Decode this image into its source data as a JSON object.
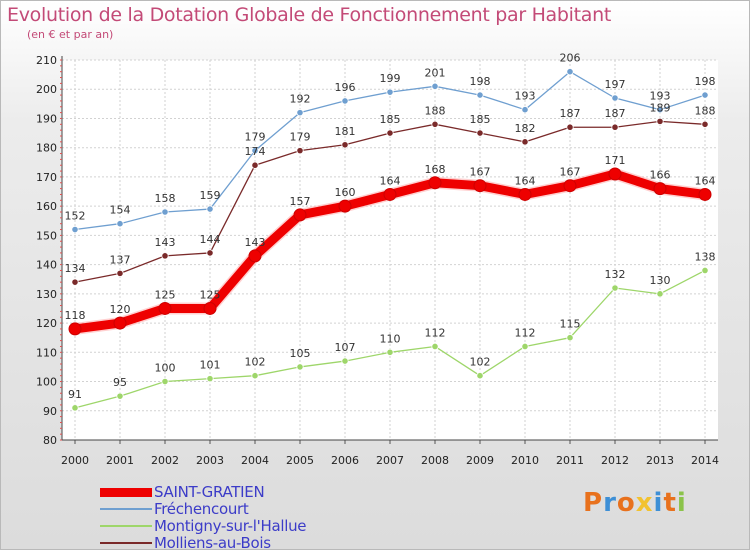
{
  "header": {
    "title": "Evolution de la Dotation Globale de Fonctionnement par Habitant",
    "subtitle": "(en € et par an)"
  },
  "logo": {
    "text": "Proxiti",
    "colors": [
      "#e8711d",
      "#3d8fd6",
      "#e8711d",
      "#f2c230",
      "#3d8fd6",
      "#e8711d",
      "#8bc34a"
    ]
  },
  "chart_data": {
    "type": "line",
    "title": "Evolution de la Dotation Globale de Fonctionnement par Habitant",
    "subtitle": "(en € et par an)",
    "x": [
      "2000",
      "2001",
      "2002",
      "2003",
      "2004",
      "2005",
      "2006",
      "2007",
      "2008",
      "2009",
      "2010",
      "2011",
      "2012",
      "2013",
      "2014"
    ],
    "ylim": [
      80,
      210
    ],
    "yticks": [
      80,
      90,
      100,
      110,
      120,
      130,
      140,
      150,
      160,
      170,
      180,
      190,
      200,
      210
    ],
    "grid": true,
    "legend": "bottom-left",
    "series": [
      {
        "name": "SAINT-GRATIEN",
        "color": "#ee0000",
        "width": 9,
        "marker": 6,
        "values": [
          118,
          120,
          125,
          125,
          143,
          157,
          160,
          164,
          168,
          167,
          164,
          167,
          171,
          166,
          164
        ]
      },
      {
        "name": "Fréchencourt",
        "color": "#6f9fd0",
        "width": 1.3,
        "marker": 3.2,
        "values": [
          152,
          154,
          158,
          159,
          179,
          192,
          196,
          199,
          201,
          198,
          193,
          206,
          197,
          193,
          198
        ]
      },
      {
        "name": "Montigny-sur-l'Hallue",
        "color": "#9ed66a",
        "width": 1.3,
        "marker": 3.2,
        "values": [
          91,
          95,
          100,
          101,
          102,
          105,
          107,
          110,
          112,
          102,
          112,
          115,
          132,
          130,
          138
        ]
      },
      {
        "name": "Molliens-au-Bois",
        "color": "#7a2a2a",
        "width": 1.3,
        "marker": 3.2,
        "values": [
          134,
          137,
          143,
          144,
          174,
          179,
          181,
          185,
          188,
          185,
          182,
          187,
          187,
          189,
          188
        ]
      }
    ]
  }
}
